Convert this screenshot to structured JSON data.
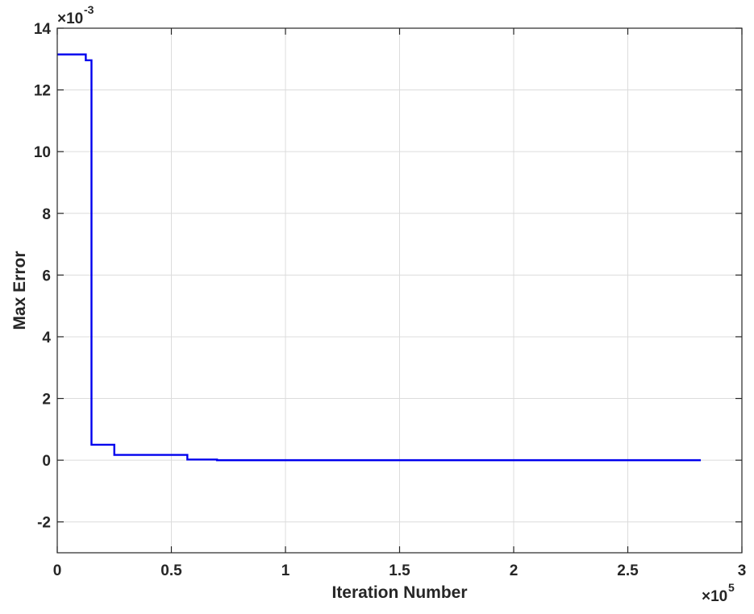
{
  "chart_data": {
    "type": "line",
    "title": "",
    "xlabel": "Iteration Number",
    "ylabel": "Max Error",
    "xlim": [
      0,
      300000
    ],
    "ylim": [
      -0.003,
      0.014
    ],
    "x_ticks": [
      0,
      50000,
      100000,
      150000,
      200000,
      250000,
      300000
    ],
    "x_tick_labels": [
      "0",
      "0.5",
      "1",
      "1.5",
      "2",
      "2.5",
      "3"
    ],
    "y_ticks": [
      -0.002,
      0,
      0.002,
      0.004,
      0.006,
      0.008,
      0.01,
      0.012,
      0.014
    ],
    "y_tick_labels": [
      "-2",
      "0",
      "2",
      "4",
      "6",
      "8",
      "10",
      "12",
      "14"
    ],
    "x_exponent_base": "×10",
    "x_exponent": "5",
    "y_exponent_base": "×10",
    "y_exponent": "-3",
    "grid": true,
    "color": "#0000ee",
    "series": [
      {
        "x": [
          0,
          12500,
          12500,
          15000,
          15000,
          15500,
          15500,
          25000,
          25000,
          57000,
          57000,
          70000,
          70000,
          282000
        ],
        "y": [
          0.01315,
          0.01315,
          0.01296,
          0.01296,
          0.0005,
          0.0005,
          0.0005,
          0.0005,
          0.00017,
          0.00017,
          2e-05,
          2e-05,
          0.0,
          0.0
        ]
      }
    ]
  }
}
